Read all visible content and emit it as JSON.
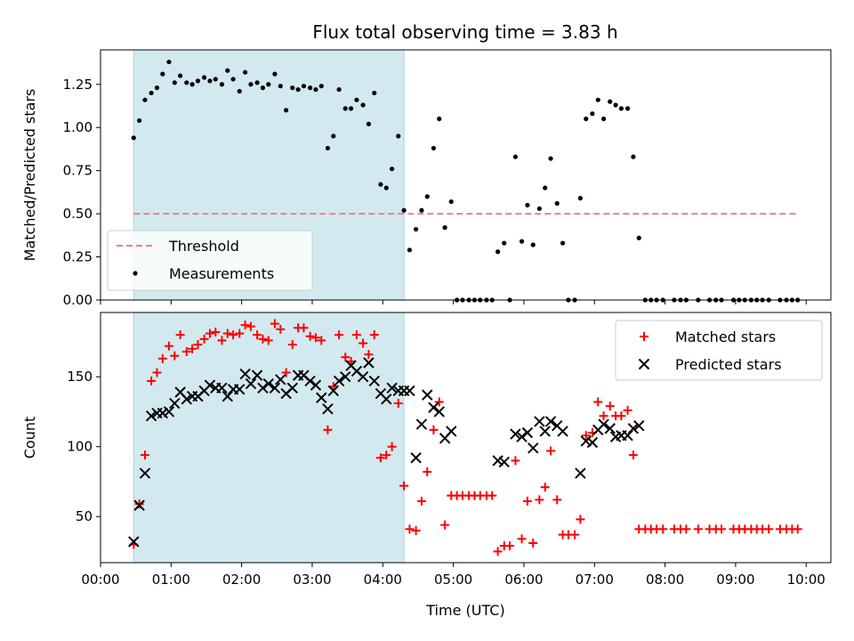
{
  "chart_data": {
    "type": "scatter",
    "title": "Flux total observing time = 3.83 h",
    "xlabel": "Time (UTC)",
    "x_tick_labels": [
      "00:00",
      "01:00",
      "02:00",
      "03:00",
      "04:00",
      "05:00",
      "06:00",
      "07:00",
      "08:00",
      "09:00",
      "10:00"
    ],
    "x_ticks_hours": [
      0,
      1,
      2,
      3,
      4,
      5,
      6,
      7,
      8,
      9,
      10
    ],
    "xlim_hours": [
      0,
      10.35
    ],
    "highlight_span_hours": [
      0.47,
      4.3
    ],
    "colors": {
      "span": "#d3e9f0",
      "threshold": "#f08080",
      "measurements": "#000000",
      "matched": "#ff0000",
      "predicted": "#000000"
    },
    "top": {
      "ylabel": "Matched/Predicted stars",
      "ylim": [
        0,
        1.45
      ],
      "y_ticks": [
        0.0,
        0.25,
        0.5,
        0.75,
        1.0,
        1.25
      ],
      "y_tick_labels": [
        "0.00",
        "0.25",
        "0.50",
        "0.75",
        "1.00",
        "1.25"
      ],
      "legend_position": "lower-left",
      "threshold": {
        "name": "Threshold",
        "y": 0.5,
        "x_range": [
          0.47,
          9.9
        ]
      },
      "measurements": {
        "name": "Measurements",
        "points": [
          [
            0.47,
            0.94
          ],
          [
            0.55,
            1.04
          ],
          [
            0.63,
            1.16
          ],
          [
            0.72,
            1.2
          ],
          [
            0.8,
            1.23
          ],
          [
            0.88,
            1.31
          ],
          [
            0.97,
            1.38
          ],
          [
            1.05,
            1.26
          ],
          [
            1.13,
            1.3
          ],
          [
            1.22,
            1.26
          ],
          [
            1.3,
            1.25
          ],
          [
            1.38,
            1.27
          ],
          [
            1.47,
            1.29
          ],
          [
            1.55,
            1.27
          ],
          [
            1.63,
            1.28
          ],
          [
            1.72,
            1.25
          ],
          [
            1.8,
            1.33
          ],
          [
            1.88,
            1.28
          ],
          [
            1.97,
            1.21
          ],
          [
            2.05,
            1.32
          ],
          [
            2.13,
            1.25
          ],
          [
            2.22,
            1.26
          ],
          [
            2.3,
            1.23
          ],
          [
            2.38,
            1.25
          ],
          [
            2.47,
            1.31
          ],
          [
            2.55,
            1.24
          ],
          [
            2.63,
            1.1
          ],
          [
            2.72,
            1.23
          ],
          [
            2.8,
            1.22
          ],
          [
            2.88,
            1.24
          ],
          [
            2.97,
            1.23
          ],
          [
            3.05,
            1.22
          ],
          [
            3.13,
            1.24
          ],
          [
            3.22,
            0.88
          ],
          [
            3.3,
            0.95
          ],
          [
            3.38,
            1.22
          ],
          [
            3.47,
            1.11
          ],
          [
            3.55,
            1.11
          ],
          [
            3.63,
            1.16
          ],
          [
            3.72,
            1.13
          ],
          [
            3.8,
            1.02
          ],
          [
            3.88,
            1.2
          ],
          [
            3.97,
            0.67
          ],
          [
            4.05,
            0.65
          ],
          [
            4.13,
            0.76
          ],
          [
            4.22,
            0.95
          ],
          [
            4.3,
            0.52
          ],
          [
            4.38,
            0.29
          ],
          [
            4.47,
            0.41
          ],
          [
            4.55,
            0.52
          ],
          [
            4.63,
            0.6
          ],
          [
            4.72,
            0.88
          ],
          [
            4.8,
            1.05
          ],
          [
            4.88,
            0.42
          ],
          [
            4.97,
            0.57
          ],
          [
            5.05,
            0.0
          ],
          [
            5.13,
            0.0
          ],
          [
            5.22,
            0.0
          ],
          [
            5.3,
            0.0
          ],
          [
            5.38,
            0.0
          ],
          [
            5.47,
            0.0
          ],
          [
            5.55,
            0.0
          ],
          [
            5.63,
            0.28
          ],
          [
            5.72,
            0.33
          ],
          [
            5.8,
            0.0
          ],
          [
            5.88,
            0.83
          ],
          [
            5.97,
            0.34
          ],
          [
            6.05,
            0.55
          ],
          [
            6.13,
            0.32
          ],
          [
            6.22,
            0.53
          ],
          [
            6.3,
            0.65
          ],
          [
            6.38,
            0.82
          ],
          [
            6.47,
            0.56
          ],
          [
            6.55,
            0.33
          ],
          [
            6.63,
            0.0
          ],
          [
            6.72,
            0.0
          ],
          [
            6.8,
            0.59
          ],
          [
            6.88,
            1.05
          ],
          [
            6.97,
            1.08
          ],
          [
            7.05,
            1.16
          ],
          [
            7.13,
            1.05
          ],
          [
            7.22,
            1.15
          ],
          [
            7.3,
            1.13
          ],
          [
            7.38,
            1.11
          ],
          [
            7.47,
            1.11
          ],
          [
            7.55,
            0.83
          ],
          [
            7.63,
            0.36
          ],
          [
            7.72,
            0.0
          ],
          [
            7.8,
            0.0
          ],
          [
            7.88,
            0.0
          ],
          [
            7.97,
            0.0
          ],
          [
            8.13,
            0.0
          ],
          [
            8.22,
            0.0
          ],
          [
            8.3,
            0.0
          ],
          [
            8.47,
            0.0
          ],
          [
            8.63,
            0.0
          ],
          [
            8.72,
            0.0
          ],
          [
            8.8,
            0.0
          ],
          [
            8.97,
            0.0
          ],
          [
            9.05,
            0.0
          ],
          [
            9.13,
            0.0
          ],
          [
            9.22,
            0.0
          ],
          [
            9.3,
            0.0
          ],
          [
            9.38,
            0.0
          ],
          [
            9.47,
            0.0
          ],
          [
            9.63,
            0.0
          ],
          [
            9.72,
            0.0
          ],
          [
            9.8,
            0.0
          ],
          [
            9.88,
            0.0
          ]
        ]
      }
    },
    "bottom": {
      "ylabel": "Count",
      "ylim": [
        17,
        196
      ],
      "y_ticks": [
        50,
        100,
        150
      ],
      "y_tick_labels": [
        "50",
        "100",
        "150"
      ],
      "legend_position": "upper-right",
      "matched": {
        "name": "Matched stars",
        "points": [
          [
            0.47,
            30
          ],
          [
            0.55,
            59
          ],
          [
            0.63,
            94
          ],
          [
            0.72,
            147
          ],
          [
            0.8,
            153
          ],
          [
            0.88,
            163
          ],
          [
            0.97,
            172
          ],
          [
            1.05,
            165
          ],
          [
            1.13,
            180
          ],
          [
            1.22,
            168
          ],
          [
            1.3,
            170
          ],
          [
            1.38,
            173
          ],
          [
            1.47,
            177
          ],
          [
            1.55,
            181
          ],
          [
            1.63,
            182
          ],
          [
            1.72,
            176
          ],
          [
            1.8,
            181
          ],
          [
            1.88,
            180
          ],
          [
            1.97,
            181
          ],
          [
            2.05,
            187
          ],
          [
            2.13,
            186
          ],
          [
            2.22,
            180
          ],
          [
            2.3,
            177
          ],
          [
            2.38,
            176
          ],
          [
            2.47,
            188
          ],
          [
            2.55,
            184
          ],
          [
            2.63,
            153
          ],
          [
            2.72,
            173
          ],
          [
            2.8,
            185
          ],
          [
            2.88,
            185
          ],
          [
            2.97,
            179
          ],
          [
            3.05,
            178
          ],
          [
            3.13,
            176
          ],
          [
            3.22,
            112
          ],
          [
            3.3,
            143
          ],
          [
            3.38,
            180
          ],
          [
            3.47,
            164
          ],
          [
            3.55,
            161
          ],
          [
            3.63,
            180
          ],
          [
            3.72,
            174
          ],
          [
            3.8,
            166
          ],
          [
            3.88,
            180
          ],
          [
            3.97,
            92
          ],
          [
            4.05,
            94
          ],
          [
            4.13,
            100
          ],
          [
            4.22,
            131
          ],
          [
            4.3,
            72
          ],
          [
            4.38,
            41
          ],
          [
            4.47,
            40
          ],
          [
            4.55,
            61
          ],
          [
            4.63,
            82
          ],
          [
            4.72,
            112
          ],
          [
            4.8,
            132
          ],
          [
            4.88,
            44
          ],
          [
            4.97,
            65
          ],
          [
            5.05,
            65
          ],
          [
            5.13,
            65
          ],
          [
            5.22,
            65
          ],
          [
            5.3,
            65
          ],
          [
            5.38,
            65
          ],
          [
            5.47,
            65
          ],
          [
            5.55,
            65
          ],
          [
            5.63,
            25
          ],
          [
            5.72,
            29
          ],
          [
            5.8,
            29
          ],
          [
            5.88,
            90
          ],
          [
            5.97,
            34
          ],
          [
            6.05,
            61
          ],
          [
            6.13,
            31
          ],
          [
            6.22,
            62
          ],
          [
            6.3,
            71
          ],
          [
            6.38,
            97
          ],
          [
            6.47,
            62
          ],
          [
            6.55,
            37
          ],
          [
            6.63,
            37
          ],
          [
            6.72,
            37
          ],
          [
            6.8,
            48
          ],
          [
            6.88,
            108
          ],
          [
            6.97,
            110
          ],
          [
            7.05,
            132
          ],
          [
            7.13,
            122
          ],
          [
            7.22,
            129
          ],
          [
            7.3,
            122
          ],
          [
            7.38,
            122
          ],
          [
            7.47,
            126
          ],
          [
            7.55,
            94
          ],
          [
            7.63,
            41
          ],
          [
            7.72,
            41
          ],
          [
            7.8,
            41
          ],
          [
            7.88,
            41
          ],
          [
            7.97,
            41
          ],
          [
            8.13,
            41
          ],
          [
            8.22,
            41
          ],
          [
            8.3,
            41
          ],
          [
            8.47,
            41
          ],
          [
            8.63,
            41
          ],
          [
            8.72,
            41
          ],
          [
            8.8,
            41
          ],
          [
            8.97,
            41
          ],
          [
            9.05,
            41
          ],
          [
            9.13,
            41
          ],
          [
            9.22,
            41
          ],
          [
            9.3,
            41
          ],
          [
            9.38,
            41
          ],
          [
            9.47,
            41
          ],
          [
            9.63,
            41
          ],
          [
            9.72,
            41
          ],
          [
            9.8,
            41
          ],
          [
            9.88,
            41
          ]
        ]
      },
      "predicted": {
        "name": "Predicted stars",
        "points": [
          [
            0.47,
            32
          ],
          [
            0.55,
            58
          ],
          [
            0.63,
            81
          ],
          [
            0.72,
            122
          ],
          [
            0.8,
            124
          ],
          [
            0.88,
            124
          ],
          [
            0.97,
            125
          ],
          [
            1.05,
            131
          ],
          [
            1.13,
            139
          ],
          [
            1.22,
            134
          ],
          [
            1.3,
            136
          ],
          [
            1.38,
            136
          ],
          [
            1.47,
            140
          ],
          [
            1.55,
            144
          ],
          [
            1.63,
            142
          ],
          [
            1.72,
            142
          ],
          [
            1.8,
            136
          ],
          [
            1.88,
            141
          ],
          [
            1.97,
            141
          ],
          [
            2.05,
            152
          ],
          [
            2.13,
            145
          ],
          [
            2.22,
            151
          ],
          [
            2.3,
            142
          ],
          [
            2.38,
            145
          ],
          [
            2.47,
            142
          ],
          [
            2.55,
            148
          ],
          [
            2.63,
            138
          ],
          [
            2.72,
            142
          ],
          [
            2.8,
            151
          ],
          [
            2.88,
            151
          ],
          [
            2.97,
            147
          ],
          [
            3.05,
            144
          ],
          [
            3.13,
            135
          ],
          [
            3.22,
            127
          ],
          [
            3.3,
            140
          ],
          [
            3.38,
            147
          ],
          [
            3.47,
            150
          ],
          [
            3.55,
            158
          ],
          [
            3.63,
            154
          ],
          [
            3.72,
            150
          ],
          [
            3.8,
            160
          ],
          [
            3.88,
            147
          ],
          [
            3.97,
            138
          ],
          [
            4.05,
            134
          ],
          [
            4.13,
            142
          ],
          [
            4.22,
            140
          ],
          [
            4.3,
            140
          ],
          [
            4.38,
            140
          ],
          [
            4.47,
            92
          ],
          [
            4.55,
            116
          ],
          [
            4.63,
            137
          ],
          [
            4.72,
            128
          ],
          [
            4.8,
            125
          ],
          [
            4.88,
            106
          ],
          [
            4.97,
            111
          ],
          [
            5.63,
            90
          ],
          [
            5.72,
            89
          ],
          [
            5.88,
            109
          ],
          [
            5.97,
            107
          ],
          [
            6.05,
            110
          ],
          [
            6.13,
            99
          ],
          [
            6.22,
            118
          ],
          [
            6.3,
            111
          ],
          [
            6.38,
            118
          ],
          [
            6.47,
            115
          ],
          [
            6.55,
            111
          ],
          [
            6.8,
            81
          ],
          [
            6.88,
            104
          ],
          [
            6.97,
            103
          ],
          [
            7.05,
            112
          ],
          [
            7.13,
            116
          ],
          [
            7.22,
            113
          ],
          [
            7.3,
            107
          ],
          [
            7.38,
            108
          ],
          [
            7.47,
            108
          ],
          [
            7.55,
            113
          ],
          [
            7.63,
            115
          ]
        ]
      }
    }
  }
}
